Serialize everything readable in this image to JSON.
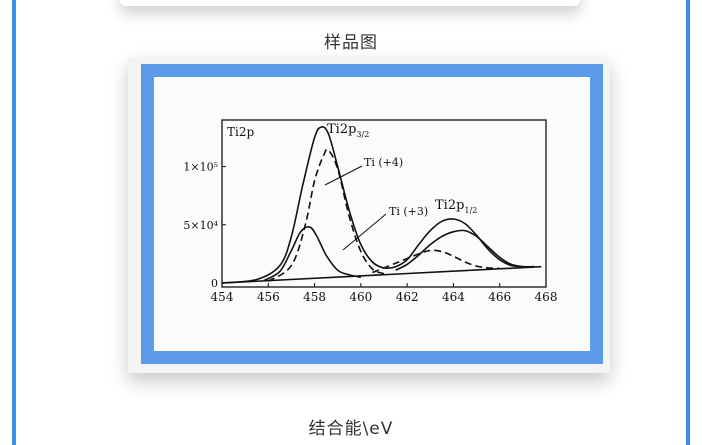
{
  "captions": {
    "top": "样品图",
    "bottom": "结合能\\eV"
  },
  "colors": {
    "accent": "#3d8fe3",
    "frame": "#5b9bea"
  },
  "chart_data": {
    "type": "line",
    "panel_label": "Ti2p",
    "x_ticks": [
      "454",
      "456",
      "458",
      "460",
      "462",
      "464",
      "466",
      "468"
    ],
    "y_ticks": [
      "0",
      "5×10⁴",
      "1×10⁵"
    ],
    "xlim": [
      454,
      468
    ],
    "ylim": [
      0,
      140000
    ],
    "annotations": {
      "ti2p32": "Ti2p",
      "ti2p32_sub": "3/2",
      "ti2p12": "Ti2p",
      "ti2p12_sub": "1/2",
      "ti4": "Ti (+4)",
      "ti3": "Ti (+3)"
    },
    "series": [
      {
        "style": "solid",
        "x": [
          454.0,
          455.5,
          456.5,
          457.0,
          457.5,
          458.0,
          458.3,
          458.6,
          459.0,
          459.5,
          460.0,
          460.5,
          461.0,
          461.5,
          462.0,
          462.5,
          463.0,
          463.5,
          464.0,
          464.5,
          465.0,
          465.5,
          466.0,
          466.5,
          467.0,
          467.5
        ],
        "y": [
          0,
          3000,
          15000,
          40000,
          85000,
          125000,
          134000,
          128000,
          100000,
          62000,
          33000,
          18000,
          13000,
          14000,
          20000,
          33000,
          45000,
          53000,
          55000,
          51000,
          41000,
          29000,
          20000,
          15000,
          14000,
          14000
        ]
      },
      {
        "style": "dashed",
        "x": [
          456.0,
          457.0,
          457.6,
          458.0,
          458.4,
          458.6,
          459.0,
          459.5,
          460.0,
          460.5,
          461.0
        ],
        "y": [
          1500,
          15000,
          50000,
          88000,
          110000,
          114000,
          98000,
          57000,
          27000,
          12000,
          8000
        ]
      },
      {
        "style": "solid",
        "x": [
          455.8,
          456.5,
          457.0,
          457.4,
          457.8,
          458.1,
          458.5,
          459.0,
          459.5,
          460.0
        ],
        "y": [
          2000,
          10000,
          28000,
          44000,
          48000,
          40000,
          24000,
          11000,
          7000,
          5000
        ]
      },
      {
        "style": "solid",
        "x": [
          461.5,
          462.0,
          462.5,
          463.0,
          463.5,
          464.0,
          464.5,
          465.0,
          465.5,
          466.0,
          466.5,
          467.0,
          467.5
        ],
        "y": [
          11000,
          16000,
          24000,
          33000,
          40000,
          44000,
          45000,
          40000,
          31000,
          22000,
          16000,
          14000,
          14000
        ]
      },
      {
        "style": "dashed",
        "x": [
          460.5,
          461.5,
          462.5,
          463.0,
          463.5,
          464.0,
          464.5,
          465.0,
          465.5,
          466.0
        ],
        "y": [
          9000,
          17000,
          25000,
          28000,
          27000,
          23000,
          18000,
          14500,
          13000,
          12500
        ]
      },
      {
        "style": "solid",
        "x": [
          454.0,
          467.8
        ],
        "y": [
          0,
          14000
        ]
      }
    ]
  }
}
